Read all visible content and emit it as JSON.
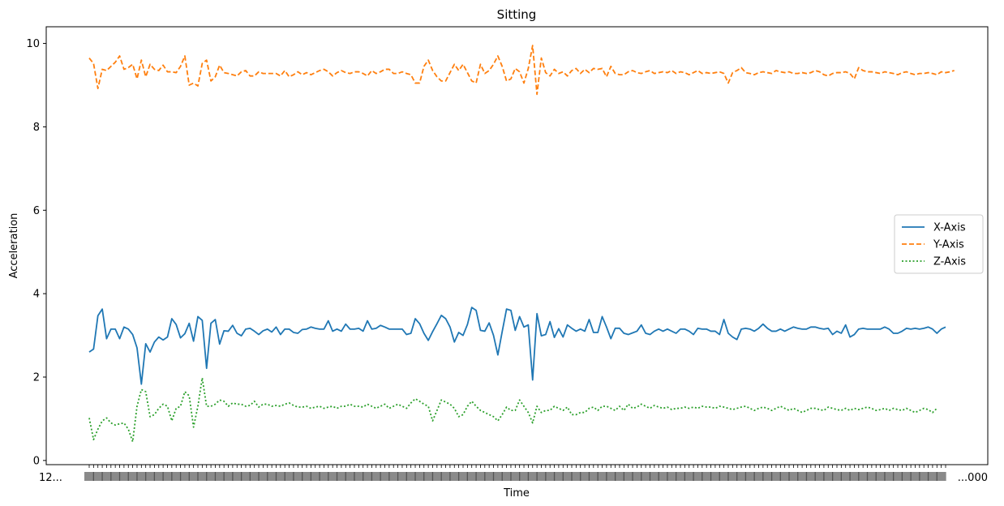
{
  "chart_data": {
    "type": "line",
    "title": "Sitting",
    "xlabel": "Time",
    "ylabel": "Acceleration",
    "ylim": [
      -0.1,
      10.4
    ],
    "y_ticks": [
      0,
      2,
      4,
      6,
      8,
      10
    ],
    "x_tick_labels": [
      "12...",
      "...000"
    ],
    "grid": false,
    "legend_position": "center-right",
    "series": [
      {
        "name": "X-Axis",
        "color": "#1f77b4",
        "linestyle": "solid",
        "values": [
          2.6,
          2.67,
          3.47,
          3.63,
          2.92,
          3.15,
          3.15,
          2.92,
          3.2,
          3.15,
          3.02,
          2.7,
          1.83,
          2.8,
          2.6,
          2.84,
          2.96,
          2.89,
          2.96,
          3.4,
          3.26,
          2.94,
          3.04,
          3.29,
          2.86,
          3.45,
          3.36,
          2.21,
          3.29,
          3.38,
          2.79,
          3.11,
          3.1,
          3.24,
          3.05,
          2.99,
          3.15,
          3.17,
          3.1,
          3.02,
          3.11,
          3.15,
          3.08,
          3.2,
          3.02,
          3.15,
          3.15,
          3.07,
          3.05,
          3.14,
          3.15,
          3.2,
          3.17,
          3.15,
          3.15,
          3.35,
          3.1,
          3.15,
          3.1,
          3.27,
          3.15,
          3.15,
          3.17,
          3.1,
          3.35,
          3.15,
          3.17,
          3.24,
          3.2,
          3.15,
          3.15,
          3.15,
          3.15,
          3.02,
          3.05,
          3.4,
          3.28,
          3.05,
          2.88,
          3.09,
          3.28,
          3.48,
          3.4,
          3.2,
          2.84,
          3.07,
          3.0,
          3.26,
          3.67,
          3.6,
          3.12,
          3.1,
          3.3,
          3.0,
          2.53,
          3.09,
          3.63,
          3.6,
          3.12,
          3.45,
          3.2,
          3.25,
          1.93,
          3.52,
          2.99,
          3.02,
          3.33,
          2.95,
          3.16,
          2.96,
          3.25,
          3.17,
          3.1,
          3.15,
          3.1,
          3.38,
          3.07,
          3.07,
          3.45,
          3.2,
          2.92,
          3.17,
          3.17,
          3.05,
          3.02,
          3.06,
          3.1,
          3.25,
          3.05,
          3.02,
          3.1,
          3.15,
          3.1,
          3.15,
          3.1,
          3.05,
          3.15,
          3.15,
          3.1,
          3.02,
          3.17,
          3.15,
          3.15,
          3.1,
          3.1,
          3.02,
          3.38,
          3.05,
          2.96,
          2.9,
          3.15,
          3.17,
          3.15,
          3.1,
          3.17,
          3.27,
          3.17,
          3.1,
          3.1,
          3.15,
          3.1,
          3.15,
          3.2,
          3.17,
          3.15,
          3.15,
          3.2,
          3.2,
          3.17,
          3.15,
          3.17,
          3.02,
          3.1,
          3.05,
          3.25,
          2.96,
          3.02,
          3.15,
          3.17,
          3.15,
          3.15,
          3.15,
          3.15,
          3.2,
          3.15,
          3.05,
          3.05,
          3.1,
          3.17,
          3.15,
          3.17,
          3.15,
          3.17,
          3.2,
          3.15,
          3.05,
          3.15,
          3.2
        ]
      },
      {
        "name": "Y-Axis",
        "color": "#ff7f0e",
        "linestyle": "dashed",
        "values": [
          9.65,
          9.52,
          8.92,
          9.38,
          9.35,
          9.45,
          9.55,
          9.7,
          9.38,
          9.42,
          9.5,
          9.15,
          9.6,
          9.2,
          9.5,
          9.38,
          9.35,
          9.48,
          9.32,
          9.32,
          9.3,
          9.45,
          9.7,
          9.0,
          9.05,
          8.98,
          9.52,
          9.6,
          9.1,
          9.2,
          9.48,
          9.3,
          9.28,
          9.25,
          9.22,
          9.32,
          9.35,
          9.22,
          9.22,
          9.32,
          9.28,
          9.28,
          9.28,
          9.28,
          9.22,
          9.35,
          9.2,
          9.25,
          9.32,
          9.25,
          9.3,
          9.25,
          9.3,
          9.35,
          9.38,
          9.32,
          9.22,
          9.3,
          9.35,
          9.3,
          9.28,
          9.32,
          9.32,
          9.28,
          9.22,
          9.35,
          9.28,
          9.32,
          9.38,
          9.38,
          9.28,
          9.28,
          9.32,
          9.28,
          9.25,
          9.05,
          9.05,
          9.45,
          9.6,
          9.35,
          9.2,
          9.1,
          9.1,
          9.3,
          9.5,
          9.35,
          9.5,
          9.3,
          9.1,
          9.05,
          9.5,
          9.28,
          9.35,
          9.5,
          9.7,
          9.45,
          9.1,
          9.15,
          9.4,
          9.32,
          9.05,
          9.4,
          9.95,
          8.78,
          9.65,
          9.3,
          9.22,
          9.38,
          9.28,
          9.32,
          9.22,
          9.35,
          9.4,
          9.28,
          9.38,
          9.3,
          9.4,
          9.38,
          9.4,
          9.2,
          9.45,
          9.28,
          9.25,
          9.25,
          9.32,
          9.35,
          9.3,
          9.28,
          9.32,
          9.35,
          9.28,
          9.3,
          9.32,
          9.3,
          9.35,
          9.28,
          9.32,
          9.3,
          9.25,
          9.3,
          9.35,
          9.28,
          9.3,
          9.28,
          9.3,
          9.32,
          9.28,
          9.05,
          9.3,
          9.35,
          9.42,
          9.3,
          9.28,
          9.25,
          9.3,
          9.32,
          9.3,
          9.28,
          9.35,
          9.32,
          9.3,
          9.32,
          9.28,
          9.28,
          9.3,
          9.28,
          9.3,
          9.35,
          9.32,
          9.25,
          9.22,
          9.28,
          9.3,
          9.3,
          9.32,
          9.28,
          9.15,
          9.42,
          9.35,
          9.32,
          9.32,
          9.3,
          9.28,
          9.32,
          9.3,
          9.28,
          9.25,
          9.3,
          9.32,
          9.28,
          9.25,
          9.28,
          9.28,
          9.3,
          9.28,
          9.25,
          9.32,
          9.3,
          9.32,
          9.35
        ]
      },
      {
        "name": "Z-Axis",
        "color": "#2ca02c",
        "linestyle": "dotted",
        "values": [
          1.02,
          0.5,
          0.75,
          0.95,
          1.02,
          0.9,
          0.85,
          0.88,
          0.9,
          0.75,
          0.45,
          1.3,
          1.7,
          1.65,
          1.05,
          1.1,
          1.25,
          1.35,
          1.3,
          0.95,
          1.25,
          1.3,
          1.65,
          1.55,
          0.8,
          1.3,
          1.98,
          1.3,
          1.3,
          1.35,
          1.45,
          1.42,
          1.3,
          1.38,
          1.35,
          1.35,
          1.3,
          1.32,
          1.42,
          1.28,
          1.35,
          1.35,
          1.3,
          1.32,
          1.3,
          1.35,
          1.38,
          1.32,
          1.28,
          1.28,
          1.3,
          1.25,
          1.28,
          1.3,
          1.25,
          1.28,
          1.3,
          1.25,
          1.3,
          1.3,
          1.35,
          1.3,
          1.3,
          1.28,
          1.35,
          1.3,
          1.25,
          1.3,
          1.35,
          1.25,
          1.3,
          1.35,
          1.3,
          1.25,
          1.38,
          1.48,
          1.42,
          1.35,
          1.3,
          0.95,
          1.2,
          1.45,
          1.4,
          1.35,
          1.25,
          1.05,
          1.1,
          1.3,
          1.42,
          1.3,
          1.2,
          1.15,
          1.1,
          1.05,
          0.95,
          1.1,
          1.28,
          1.2,
          1.2,
          1.45,
          1.3,
          1.15,
          0.9,
          1.3,
          1.15,
          1.2,
          1.2,
          1.3,
          1.25,
          1.2,
          1.28,
          1.1,
          1.1,
          1.15,
          1.15,
          1.25,
          1.28,
          1.2,
          1.3,
          1.3,
          1.25,
          1.2,
          1.3,
          1.2,
          1.35,
          1.25,
          1.28,
          1.35,
          1.3,
          1.25,
          1.32,
          1.28,
          1.25,
          1.28,
          1.22,
          1.25,
          1.25,
          1.28,
          1.25,
          1.28,
          1.25,
          1.3,
          1.28,
          1.28,
          1.25,
          1.3,
          1.28,
          1.25,
          1.22,
          1.25,
          1.28,
          1.3,
          1.25,
          1.2,
          1.25,
          1.28,
          1.25,
          1.2,
          1.25,
          1.3,
          1.25,
          1.2,
          1.25,
          1.2,
          1.15,
          1.2,
          1.25,
          1.25,
          1.22,
          1.2,
          1.28,
          1.25,
          1.22,
          1.2,
          1.25,
          1.2,
          1.25,
          1.22,
          1.25,
          1.28,
          1.25,
          1.2,
          1.22,
          1.25,
          1.2,
          1.25,
          1.22,
          1.2,
          1.25,
          1.2,
          1.15,
          1.2,
          1.25,
          1.22,
          1.15,
          1.25
        ]
      }
    ]
  }
}
